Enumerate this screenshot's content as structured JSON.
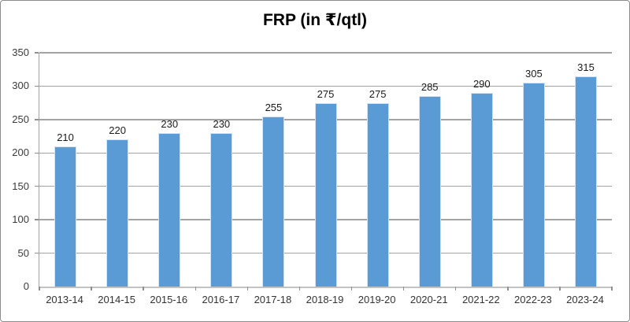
{
  "chart": {
    "colors": {
      "bar_fill": "#5b9bd5",
      "bar_border": "#d3e3f3",
      "gridline": "#a3a3a3",
      "axis_line": "#c3c3c3",
      "tick": "#8f8f8f",
      "frame_border": "#8c8c8c",
      "title_text": "#000000",
      "axis_text": "#333333",
      "value_text": "#1a1a1a"
    }
  },
  "chart_data": {
    "type": "bar",
    "title": "FRP (in ₹/qtl)",
    "categories": [
      "2013-14",
      "2014-15",
      "2015-16",
      "2016-17",
      "2017-18",
      "2018-19",
      "2019-20",
      "2020-21",
      "2021-22",
      "2022-23",
      "2023-24"
    ],
    "values": [
      210,
      220,
      230,
      230,
      255,
      275,
      275,
      285,
      290,
      305,
      315
    ],
    "xlabel": "",
    "ylabel": "",
    "ylim": [
      0,
      350
    ],
    "yticks": [
      0,
      50,
      100,
      150,
      200,
      250,
      300,
      350
    ],
    "grid": true,
    "legend": "none",
    "data_labels": true
  }
}
